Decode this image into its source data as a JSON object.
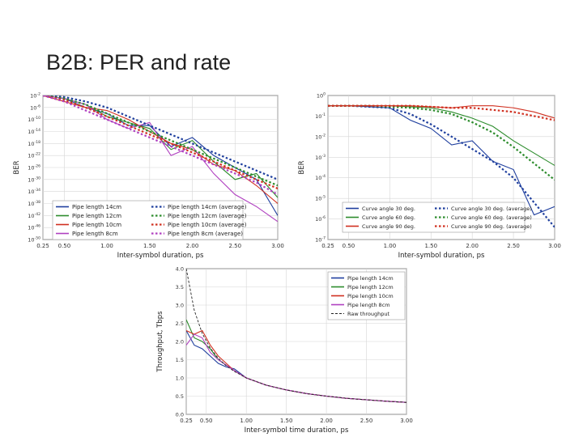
{
  "slide": {
    "title": "B2B: PER and rate"
  },
  "chart_data": [
    {
      "type": "line",
      "title": "",
      "xlabel": "Inter-symbol duration, ps",
      "ylabel": "BER",
      "xlim": [
        0.25,
        3.0
      ],
      "ylim": [
        -50,
        -2
      ],
      "yscale": "log",
      "grid": true,
      "legend_placement": "bottom",
      "xticks": [
        "0.25",
        "0.50",
        "1.00",
        "1.50",
        "2.00",
        "2.50",
        "3.00"
      ],
      "xtick_values": [
        0.25,
        0.5,
        1.0,
        1.5,
        2.0,
        2.5,
        3.0
      ],
      "yticks": [
        "10^-2",
        "10^-6",
        "10^-10",
        "10^-14",
        "10^-18",
        "10^-22",
        "10^-26",
        "10^-30",
        "10^-34",
        "10^-38",
        "10^-42",
        "10^-46",
        "10^-50"
      ],
      "ytick_values": [
        -2,
        -6,
        -10,
        -14,
        -18,
        -22,
        -26,
        -30,
        -34,
        -38,
        -42,
        -46,
        -50
      ],
      "x": [
        0.25,
        0.5,
        0.75,
        1.0,
        1.25,
        1.5,
        1.75,
        2.0,
        2.25,
        2.5,
        2.75,
        3.0
      ],
      "series": [
        {
          "name": "Pipe length 14cm",
          "style": "solid",
          "color": "#1f3f9e",
          "values": [
            -2,
            -3,
            -6,
            -8,
            -12,
            -12,
            -19,
            -16,
            -22,
            -26,
            -30,
            -42
          ]
        },
        {
          "name": "Pipe length 12cm",
          "style": "solid",
          "color": "#2c8c2c",
          "values": [
            -2,
            -3,
            -5,
            -9,
            -11,
            -13,
            -20,
            -17,
            -24,
            -30,
            -28,
            -36
          ]
        },
        {
          "name": "Pipe length 10cm",
          "style": "solid",
          "color": "#d03020",
          "values": [
            -2,
            -4,
            -6,
            -7,
            -10,
            -14,
            -18,
            -20,
            -25,
            -27,
            -32,
            -38
          ]
        },
        {
          "name": "Pipe length 8cm",
          "style": "solid",
          "color": "#b040c0",
          "values": [
            -2,
            -3,
            -5,
            -10,
            -13,
            -11,
            -22,
            -19,
            -28,
            -35,
            -39,
            -44
          ]
        },
        {
          "name": "Pipe length 14cm (average)",
          "style": "dotted",
          "color": "#1f3f9e",
          "values": [
            -2,
            -2.5,
            -4,
            -6,
            -9,
            -12,
            -15,
            -18,
            -21,
            -24,
            -27,
            -30
          ]
        },
        {
          "name": "Pipe length 12cm (average)",
          "style": "dotted",
          "color": "#2c8c2c",
          "values": [
            -2,
            -3,
            -5,
            -8,
            -11,
            -14,
            -17,
            -20,
            -23,
            -26,
            -29,
            -32
          ]
        },
        {
          "name": "Pipe length 10cm (average)",
          "style": "dotted",
          "color": "#d03020",
          "values": [
            -2,
            -3.5,
            -6,
            -9,
            -12,
            -15,
            -18,
            -21,
            -24,
            -27,
            -30,
            -33
          ]
        },
        {
          "name": "Pipe length 8cm (average)",
          "style": "dotted",
          "color": "#b040c0",
          "values": [
            -2,
            -4,
            -7,
            -10,
            -13,
            -16,
            -19,
            -22,
            -25,
            -28,
            -31,
            -35
          ]
        }
      ]
    },
    {
      "type": "line",
      "title": "",
      "xlabel": "Inter-symbol duration, ps",
      "ylabel": "BER",
      "xlim": [
        0.25,
        3.0
      ],
      "ylim": [
        -7,
        0
      ],
      "yscale": "log",
      "grid": true,
      "legend_placement": "bottom",
      "xticks": [
        "0.25",
        "0.50",
        "1.00",
        "1.50",
        "2.00",
        "2.50",
        "3.00"
      ],
      "xtick_values": [
        0.25,
        0.5,
        1.0,
        1.5,
        2.0,
        2.5,
        3.0
      ],
      "yticks": [
        "10^0",
        "10^-1",
        "10^-2",
        "10^-3",
        "10^-4",
        "10^-5",
        "10^-6",
        "10^-7"
      ],
      "ytick_values": [
        0,
        -1,
        -2,
        -3,
        -4,
        -5,
        -6,
        -7
      ],
      "x": [
        0.25,
        0.5,
        0.75,
        1.0,
        1.25,
        1.5,
        1.75,
        2.0,
        2.25,
        2.5,
        2.75,
        3.0
      ],
      "series": [
        {
          "name": "Curve angle 30 deg.",
          "style": "solid",
          "color": "#1f3f9e",
          "values": [
            -0.5,
            -0.5,
            -0.55,
            -0.6,
            -1.2,
            -1.6,
            -2.4,
            -2.2,
            -3.2,
            -3.6,
            -5.8,
            -5.4
          ]
        },
        {
          "name": "Curve angle 60 deg.",
          "style": "solid",
          "color": "#2c8c2c",
          "values": [
            -0.5,
            -0.5,
            -0.5,
            -0.5,
            -0.55,
            -0.6,
            -0.8,
            -1.1,
            -1.5,
            -2.2,
            -2.8,
            -3.4
          ]
        },
        {
          "name": "Curve angle 90 deg.",
          "style": "solid",
          "color": "#d03020",
          "values": [
            -0.5,
            -0.5,
            -0.5,
            -0.5,
            -0.5,
            -0.55,
            -0.6,
            -0.5,
            -0.5,
            -0.6,
            -0.8,
            -1.1
          ]
        },
        {
          "name": "Curve angle 30 deg. (average)",
          "style": "dotted",
          "color": "#1f3f9e",
          "values": [
            -0.5,
            -0.5,
            -0.55,
            -0.6,
            -0.9,
            -1.4,
            -2.0,
            -2.6,
            -3.2,
            -4.0,
            -5.2,
            -6.4
          ]
        },
        {
          "name": "Curve angle 60 deg. (average)",
          "style": "dotted",
          "color": "#2c8c2c",
          "values": [
            -0.5,
            -0.5,
            -0.5,
            -0.55,
            -0.6,
            -0.7,
            -0.9,
            -1.3,
            -1.8,
            -2.5,
            -3.3,
            -4.1
          ]
        },
        {
          "name": "Curve angle 90 deg. (average)",
          "style": "dotted",
          "color": "#d03020",
          "values": [
            -0.5,
            -0.5,
            -0.5,
            -0.5,
            -0.5,
            -0.55,
            -0.6,
            -0.6,
            -0.7,
            -0.8,
            -1.0,
            -1.2
          ]
        }
      ]
    },
    {
      "type": "line",
      "title": "",
      "xlabel": "Inter-symbol time duration, ps",
      "ylabel": "Throughput, Tbps",
      "xlim": [
        0.25,
        3.0
      ],
      "ylim": [
        0,
        4
      ],
      "grid": true,
      "legend_placement": "top-right",
      "xticks": [
        "0.25",
        "0.50",
        "1.00",
        "1.50",
        "2.00",
        "2.50",
        "3.00"
      ],
      "xtick_values": [
        0.25,
        0.5,
        1.0,
        1.5,
        2.0,
        2.5,
        3.0
      ],
      "yticks": [
        "0.0",
        "0.5",
        "1.0",
        "1.5",
        "2.0",
        "2.5",
        "3.0",
        "3.5",
        "4.0"
      ],
      "ytick_values": [
        0,
        0.5,
        1.0,
        1.5,
        2.0,
        2.5,
        3.0,
        3.5,
        4.0
      ],
      "x": [
        0.25,
        0.35,
        0.45,
        0.55,
        0.65,
        0.75,
        0.85,
        1.0,
        1.25,
        1.5,
        1.75,
        2.0,
        2.25,
        2.5,
        2.75,
        3.0
      ],
      "series": [
        {
          "name": "Pipe length 14cm",
          "style": "solid",
          "color": "#1f3f9e",
          "values": [
            2.3,
            1.9,
            1.8,
            1.6,
            1.4,
            1.3,
            1.25,
            1.0,
            0.8,
            0.67,
            0.57,
            0.5,
            0.44,
            0.4,
            0.36,
            0.33
          ]
        },
        {
          "name": "Pipe length 12cm",
          "style": "solid",
          "color": "#2c8c2c",
          "values": [
            2.6,
            2.1,
            2.0,
            1.8,
            1.5,
            1.35,
            1.2,
            1.0,
            0.8,
            0.67,
            0.57,
            0.5,
            0.44,
            0.4,
            0.36,
            0.33
          ]
        },
        {
          "name": "Pipe length 10cm",
          "style": "solid",
          "color": "#d03020",
          "values": [
            2.3,
            2.2,
            2.3,
            1.9,
            1.6,
            1.4,
            1.2,
            1.0,
            0.8,
            0.67,
            0.57,
            0.5,
            0.44,
            0.4,
            0.36,
            0.33
          ]
        },
        {
          "name": "Pipe length 8cm",
          "style": "solid",
          "color": "#b040c0",
          "values": [
            1.9,
            2.2,
            2.1,
            1.7,
            1.5,
            1.35,
            1.2,
            1.0,
            0.8,
            0.67,
            0.57,
            0.5,
            0.44,
            0.4,
            0.36,
            0.33
          ]
        },
        {
          "name": "Raw throughput",
          "style": "dashed",
          "color": "#222222",
          "values": [
            4.0,
            2.86,
            2.22,
            1.82,
            1.54,
            1.33,
            1.18,
            1.0,
            0.8,
            0.67,
            0.57,
            0.5,
            0.44,
            0.4,
            0.36,
            0.33
          ]
        }
      ]
    }
  ]
}
